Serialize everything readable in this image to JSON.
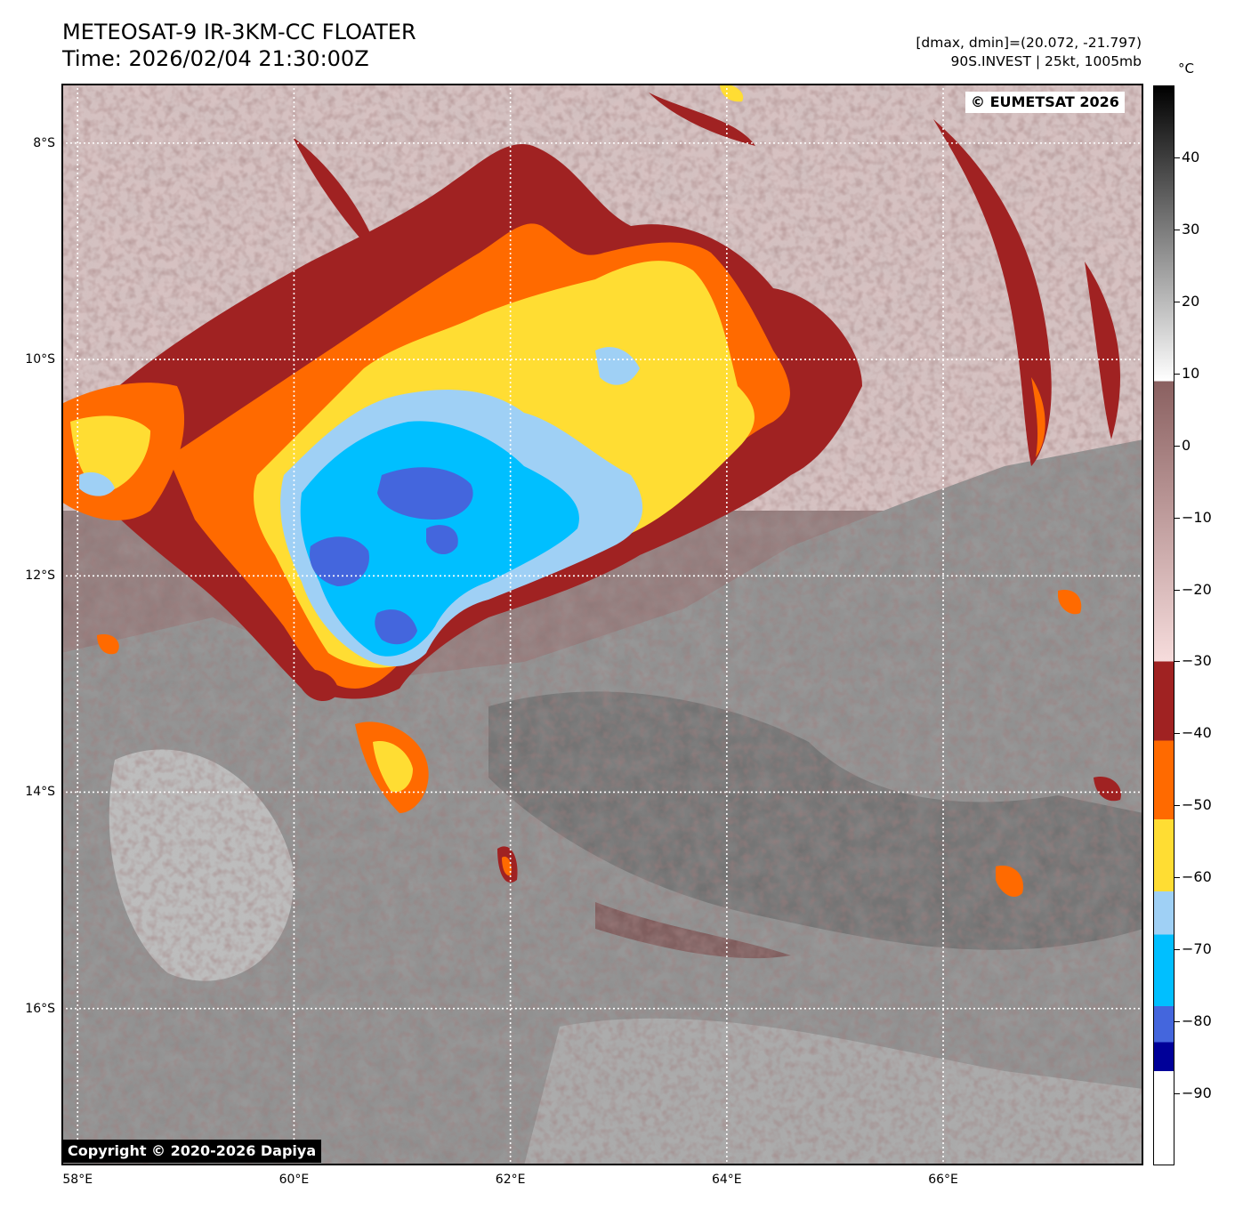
{
  "header": {
    "title_line1": "METEOSAT-9 IR-3KM-CC FLOATER",
    "title_line2": "Time: 2026/02/04 21:30:00Z",
    "info_line1": "[dmax, dmin]=(20.072, -21.797)",
    "info_line2": "90S.INVEST | 25kt, 1005mb"
  },
  "map": {
    "lat_labels": [
      "8°S",
      "10°S",
      "12°S",
      "14°S",
      "16°S"
    ],
    "lon_labels": [
      "58°E",
      "60°E",
      "62°E",
      "64°E",
      "66°E"
    ],
    "lat_values": [
      -8,
      -10,
      -12,
      -14,
      -16
    ],
    "lon_values": [
      58,
      60,
      62,
      64,
      66
    ],
    "lat_range": [
      -17.45,
      -7.45
    ],
    "lon_range": [
      57.85,
      67.85
    ],
    "watermark": "© EUMETSAT 2026",
    "copyright": "Copyright © 2020-2026 Dapiya"
  },
  "colorbar": {
    "unit": "°C",
    "ticks": [
      "40",
      "30",
      "20",
      "10",
      "0",
      "−10",
      "−20",
      "−30",
      "−40",
      "−50",
      "−60",
      "−70",
      "−80",
      "−90"
    ],
    "tick_values": [
      40,
      30,
      20,
      10,
      0,
      -10,
      -20,
      -30,
      -40,
      -50,
      -60,
      -70,
      -80,
      -90
    ],
    "range": [
      -100,
      50
    ],
    "colors": {
      "gray_hot": "#000000",
      "gray_warm": "#ffffff",
      "pink_mid": "#8a6060",
      "pink_pale": "#f6dcdc",
      "dark_red": "#a02222",
      "orange": "#ff6a00",
      "yellow": "#ffdd33",
      "pale_blue": "#9fd0f5",
      "cyan": "#00bfff",
      "royal_blue": "#4466dd",
      "navy": "#000099",
      "white": "#ffffff"
    }
  }
}
